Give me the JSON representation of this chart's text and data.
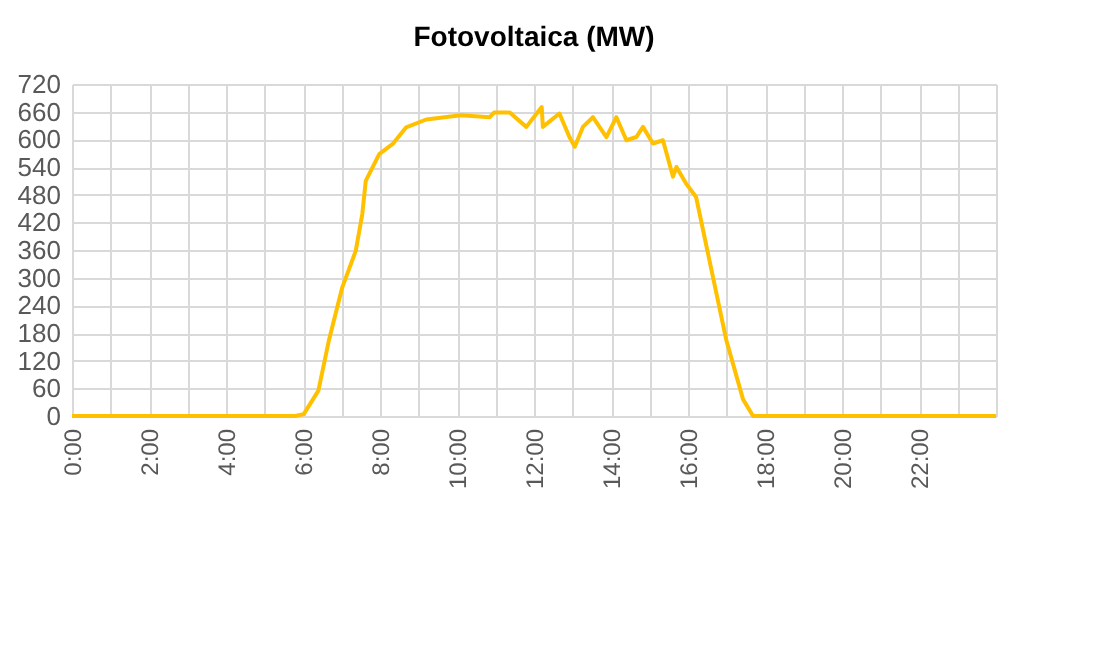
{
  "chart_data": {
    "type": "line",
    "title": "Fotovoltaica (MW)",
    "x": [
      0,
      5.8,
      6.02,
      6.4,
      6.67,
      7.02,
      7.37,
      7.54,
      7.63,
      7.98,
      8.33,
      8.68,
      9.2,
      10.1,
      10.85,
      10.96,
      11.37,
      11.8,
      12.2,
      12.23,
      12.66,
      12.92,
      13.06,
      13.27,
      13.53,
      13.88,
      14.14,
      14.4,
      14.66,
      14.83,
      15.09,
      15.35,
      15.61,
      15.7,
      15.95,
      16.21,
      16.99,
      17.43,
      17.69,
      24
    ],
    "series": [
      {
        "color": "#ffc000",
        "values": [
          0,
          0,
          4,
          55,
          163,
          279,
          358,
          438,
          510,
          568,
          590,
          626,
          643,
          652,
          648,
          658,
          658,
          627,
          670,
          627,
          656,
          605,
          584,
          627,
          648,
          605,
          648,
          598,
          605,
          627,
          591,
          598,
          519,
          540,
          504,
          475,
          166,
          36,
          0,
          0
        ]
      }
    ],
    "xlim": [
      0,
      24
    ],
    "xticks": [
      {
        "value": 0,
        "label": "0:00"
      },
      {
        "value": 1,
        "label": null
      },
      {
        "value": 2,
        "label": "2:00"
      },
      {
        "value": 3,
        "label": null
      },
      {
        "value": 4,
        "label": "4:00"
      },
      {
        "value": 5,
        "label": null
      },
      {
        "value": 6,
        "label": "6:00"
      },
      {
        "value": 7,
        "label": null
      },
      {
        "value": 8,
        "label": "8:00"
      },
      {
        "value": 9,
        "label": null
      },
      {
        "value": 10,
        "label": "10:00"
      },
      {
        "value": 11,
        "label": null
      },
      {
        "value": 12,
        "label": "12:00"
      },
      {
        "value": 13,
        "label": null
      },
      {
        "value": 14,
        "label": "14:00"
      },
      {
        "value": 15,
        "label": null
      },
      {
        "value": 16,
        "label": "16:00"
      },
      {
        "value": 17,
        "label": null
      },
      {
        "value": 18,
        "label": "18:00"
      },
      {
        "value": 19,
        "label": null
      },
      {
        "value": 20,
        "label": "20:00"
      },
      {
        "value": 21,
        "label": null
      },
      {
        "value": 22,
        "label": "22:00"
      },
      {
        "value": 23,
        "label": null
      },
      {
        "value": 24,
        "label": null
      }
    ],
    "ylim": [
      0,
      720
    ],
    "yticks": [
      0,
      60,
      120,
      180,
      240,
      300,
      360,
      420,
      480,
      540,
      600,
      660,
      720
    ],
    "grid": true,
    "legend": false,
    "marker": "none",
    "line_style": "solid"
  }
}
